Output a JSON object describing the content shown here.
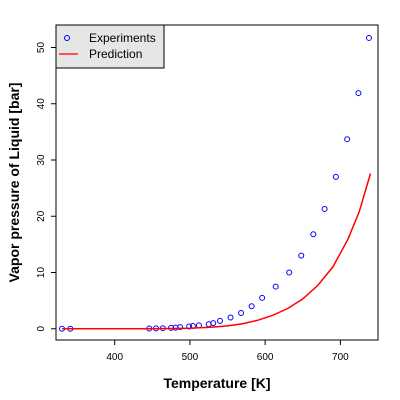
{
  "chart_data": {
    "type": "scatter",
    "xlabel": "Temperature [K]",
    "ylabel": "Vapor pressure of Liquid [bar]",
    "xlim": [
      322,
      750
    ],
    "ylim": [
      -2,
      54
    ],
    "xticks": [
      400,
      500,
      600,
      700
    ],
    "yticks": [
      0,
      10,
      20,
      30,
      40,
      50
    ],
    "grid": false,
    "legend": {
      "placement": "top-left",
      "entries": [
        "Experiments",
        "Prediction"
      ]
    },
    "series": [
      {
        "name": "Experiments",
        "kind": "points",
        "marker": "open-circle",
        "color": "#0000ff",
        "x": [
          330,
          341,
          446,
          455,
          464,
          475,
          481,
          487,
          499,
          504,
          512,
          525,
          531,
          540,
          554,
          568,
          582,
          596,
          614,
          632,
          648,
          664,
          679,
          694,
          709,
          724,
          738
        ],
        "y": [
          0.0,
          0.0,
          0.05,
          0.07,
          0.1,
          0.15,
          0.2,
          0.3,
          0.4,
          0.5,
          0.6,
          0.8,
          1.0,
          1.4,
          2.0,
          2.8,
          4.0,
          5.5,
          7.5,
          10.0,
          13.0,
          16.8,
          21.3,
          27.0,
          33.7,
          41.9,
          51.7
        ]
      },
      {
        "name": "Prediction",
        "kind": "line",
        "color": "#ff0000",
        "x": [
          330,
          400,
          450,
          500,
          530,
          550,
          570,
          590,
          610,
          630,
          650,
          670,
          690,
          710,
          725,
          740
        ],
        "y": [
          0.0,
          0.0,
          0.01,
          0.1,
          0.3,
          0.5,
          0.9,
          1.5,
          2.4,
          3.6,
          5.3,
          7.7,
          11.0,
          15.9,
          20.8,
          27.6
        ]
      }
    ]
  }
}
